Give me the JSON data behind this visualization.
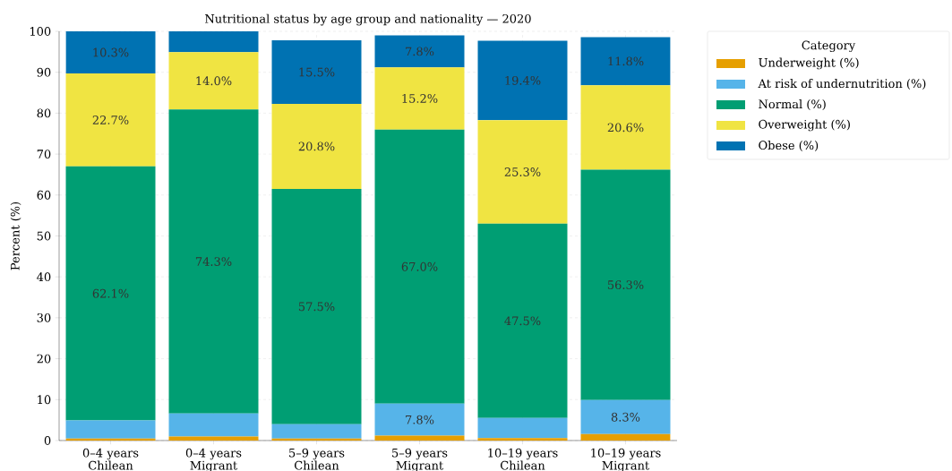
{
  "chart_data": {
    "type": "bar",
    "title": "Nutritional status by age group and nationality — 2020",
    "ylabel": "Percent (%)",
    "legend_title": "Category",
    "categories": [
      "0–4 years Chilean",
      "0–4 years Migrant",
      "5–9 years Chilean",
      "5–9 years Migrant",
      "10–19 years Chilean",
      "10–19 years Migrant"
    ],
    "stacked": true,
    "grid": true,
    "legend": "right",
    "ylim": [
      0,
      100
    ],
    "yticks": [
      0,
      10,
      20,
      30,
      40,
      50,
      60,
      70,
      80,
      90,
      100
    ],
    "series": [
      {
        "name": "Underweight (%)",
        "color": "#e69f00",
        "values": [
          0.5,
          1.0,
          0.5,
          1.2,
          0.6,
          1.6
        ],
        "value_labels": [
          null,
          null,
          null,
          null,
          null,
          null
        ]
      },
      {
        "name": "At risk of undernutrition (%)",
        "color": "#56b4e9",
        "values": [
          4.4,
          5.6,
          3.5,
          7.8,
          4.9,
          8.3
        ],
        "value_labels": [
          null,
          null,
          null,
          "7.8%",
          null,
          "8.3%"
        ]
      },
      {
        "name": "Normal (%)",
        "color": "#009e73",
        "values": [
          62.1,
          74.3,
          57.5,
          67.0,
          47.5,
          56.3
        ],
        "value_labels": [
          "62.1%",
          "74.3%",
          "57.5%",
          "67.0%",
          "47.5%",
          "56.3%"
        ]
      },
      {
        "name": "Overweight (%)",
        "color": "#f0e442",
        "values": [
          22.7,
          14.0,
          20.8,
          15.2,
          25.3,
          20.6
        ],
        "value_labels": [
          "22.7%",
          "14.0%",
          "20.8%",
          "15.2%",
          "25.3%",
          "20.6%"
        ]
      },
      {
        "name": "Obese (%)",
        "color": "#0072b2",
        "values": [
          10.3,
          5.1,
          15.5,
          7.8,
          19.4,
          11.8
        ],
        "value_labels": [
          "10.3%",
          null,
          "15.5%",
          "7.8%",
          "19.4%",
          "11.8%"
        ]
      }
    ]
  }
}
